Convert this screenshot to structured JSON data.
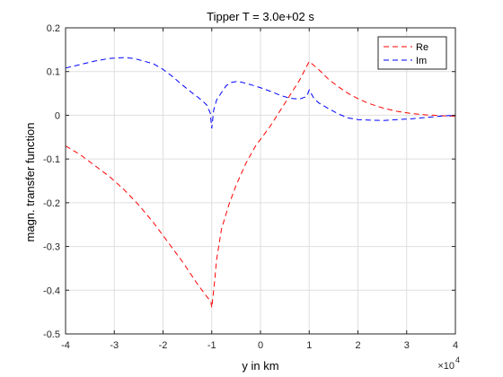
{
  "chart_data": {
    "type": "line",
    "title": "Tipper T = 3.0e+02 s",
    "xlabel": "y in km",
    "ylabel": "magn. transfer function",
    "x_exponent_label": "×10",
    "x_exponent_power": "4",
    "xlim": [
      -40000,
      40000
    ],
    "ylim": [
      -0.5,
      0.2
    ],
    "x_ticks": [
      -40000,
      -30000,
      -20000,
      -10000,
      0,
      10000,
      20000,
      30000,
      40000
    ],
    "x_tick_labels": [
      "-4",
      "-3",
      "-2",
      "-1",
      "0",
      "1",
      "2",
      "3",
      "4"
    ],
    "y_ticks": [
      -0.5,
      -0.4,
      -0.3,
      -0.2,
      -0.1,
      0,
      0.1,
      0.2
    ],
    "y_tick_labels": [
      "-0.5",
      "-0.4",
      "-0.3",
      "-0.2",
      "-0.1",
      "0",
      "0.1",
      "0.2"
    ],
    "grid": true,
    "legend_position": "top-right",
    "series": [
      {
        "name": "Re",
        "color": "#ff0000",
        "line_style": "dashed",
        "x": [
          -40000,
          -37000,
          -34000,
          -31000,
          -28000,
          -25000,
          -22000,
          -19000,
          -16000,
          -13000,
          -11000,
          -10200,
          -10000,
          -9500,
          -9000,
          -8000,
          -6500,
          -5000,
          -3000,
          -1000,
          0,
          2000,
          4000,
          6000,
          8000,
          10000,
          12000,
          14000,
          16000,
          18000,
          20000,
          22000,
          25000,
          28000,
          31000,
          34000,
          37000,
          40000
        ],
        "y": [
          -0.07,
          -0.09,
          -0.115,
          -0.14,
          -0.17,
          -0.205,
          -0.245,
          -0.29,
          -0.335,
          -0.385,
          -0.415,
          -0.425,
          -0.44,
          -0.39,
          -0.33,
          -0.26,
          -0.205,
          -0.16,
          -0.11,
          -0.07,
          -0.055,
          -0.025,
          0.01,
          0.045,
          0.08,
          0.123,
          0.104,
          0.082,
          0.065,
          0.05,
          0.038,
          0.028,
          0.017,
          0.009,
          0.004,
          0.001,
          -0.001,
          -0.002
        ]
      },
      {
        "name": "Im",
        "color": "#0000ff",
        "line_style": "dashed",
        "x": [
          -40000,
          -37000,
          -34000,
          -31000,
          -28000,
          -26000,
          -24000,
          -22000,
          -20000,
          -18000,
          -16000,
          -14000,
          -12000,
          -11000,
          -10300,
          -10000,
          -9600,
          -9000,
          -8000,
          -7000,
          -6000,
          -5000,
          -4000,
          -2000,
          0,
          2000,
          4000,
          6000,
          8000,
          9500,
          10000,
          11000,
          12000,
          14000,
          16000,
          18000,
          20000,
          22000,
          25000,
          28000,
          31000,
          34000,
          37000,
          40000
        ],
        "y": [
          0.108,
          0.116,
          0.124,
          0.13,
          0.132,
          0.13,
          0.124,
          0.118,
          0.105,
          0.088,
          0.069,
          0.051,
          0.034,
          0.023,
          0.005,
          -0.03,
          0.012,
          0.035,
          0.052,
          0.068,
          0.075,
          0.077,
          0.076,
          0.07,
          0.063,
          0.055,
          0.046,
          0.039,
          0.037,
          0.043,
          0.058,
          0.038,
          0.028,
          0.015,
          0.003,
          -0.006,
          -0.01,
          -0.011,
          -0.012,
          -0.01,
          -0.008,
          -0.005,
          -0.002,
          0.0
        ]
      }
    ]
  }
}
